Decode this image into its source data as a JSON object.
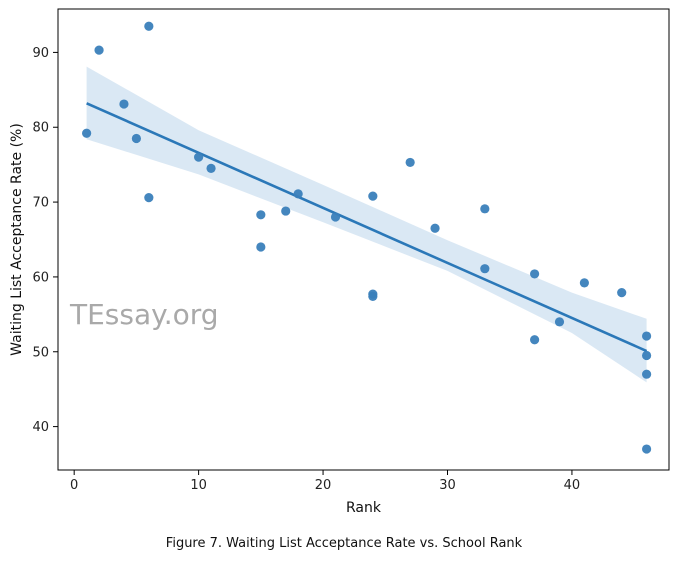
{
  "chart_data": {
    "type": "scatter",
    "xlabel": "Rank",
    "ylabel": "Waiting List Acceptance Rate (%)",
    "xlim": [
      -1.3,
      47.8
    ],
    "ylim": [
      34.2,
      95.8
    ],
    "xticks": [
      0,
      10,
      20,
      30,
      40
    ],
    "yticks": [
      40,
      50,
      60,
      70,
      80,
      90
    ],
    "grid": false,
    "watermark": "TEssay.org",
    "caption": "Figure 7. Waiting List Acceptance Rate vs. School Rank",
    "colors": {
      "points": "#3a7fba",
      "line": "#2b78b8",
      "band": "#d6e5f3"
    },
    "points": [
      {
        "x": 1,
        "y": 79.2
      },
      {
        "x": 2,
        "y": 90.3
      },
      {
        "x": 4,
        "y": 83.1
      },
      {
        "x": 5,
        "y": 78.5
      },
      {
        "x": 6,
        "y": 93.5
      },
      {
        "x": 6,
        "y": 70.6
      },
      {
        "x": 10,
        "y": 76.0
      },
      {
        "x": 11,
        "y": 74.5
      },
      {
        "x": 15,
        "y": 68.3
      },
      {
        "x": 15,
        "y": 64.0
      },
      {
        "x": 17,
        "y": 68.8
      },
      {
        "x": 18,
        "y": 71.1
      },
      {
        "x": 21,
        "y": 68.0
      },
      {
        "x": 24,
        "y": 70.8
      },
      {
        "x": 24,
        "y": 57.7
      },
      {
        "x": 24,
        "y": 57.4
      },
      {
        "x": 27,
        "y": 75.3
      },
      {
        "x": 29,
        "y": 66.5
      },
      {
        "x": 33,
        "y": 69.1
      },
      {
        "x": 33,
        "y": 61.1
      },
      {
        "x": 37,
        "y": 60.4
      },
      {
        "x": 37,
        "y": 51.6
      },
      {
        "x": 39,
        "y": 54.0
      },
      {
        "x": 41,
        "y": 59.2
      },
      {
        "x": 44,
        "y": 57.9
      },
      {
        "x": 46,
        "y": 52.1
      },
      {
        "x": 46,
        "y": 49.5
      },
      {
        "x": 46,
        "y": 47.0
      },
      {
        "x": 46,
        "y": 37.0
      }
    ],
    "regression": {
      "x": [
        1,
        46
      ],
      "y": [
        83.2,
        50.1
      ]
    },
    "confidence_band": {
      "x": [
        1,
        10,
        20,
        30,
        40,
        46
      ],
      "upper": [
        88.1,
        79.6,
        72.3,
        64.9,
        57.9,
        54.4
      ],
      "lower": [
        78.4,
        73.7,
        67.3,
        60.8,
        52.5,
        45.9
      ]
    }
  }
}
